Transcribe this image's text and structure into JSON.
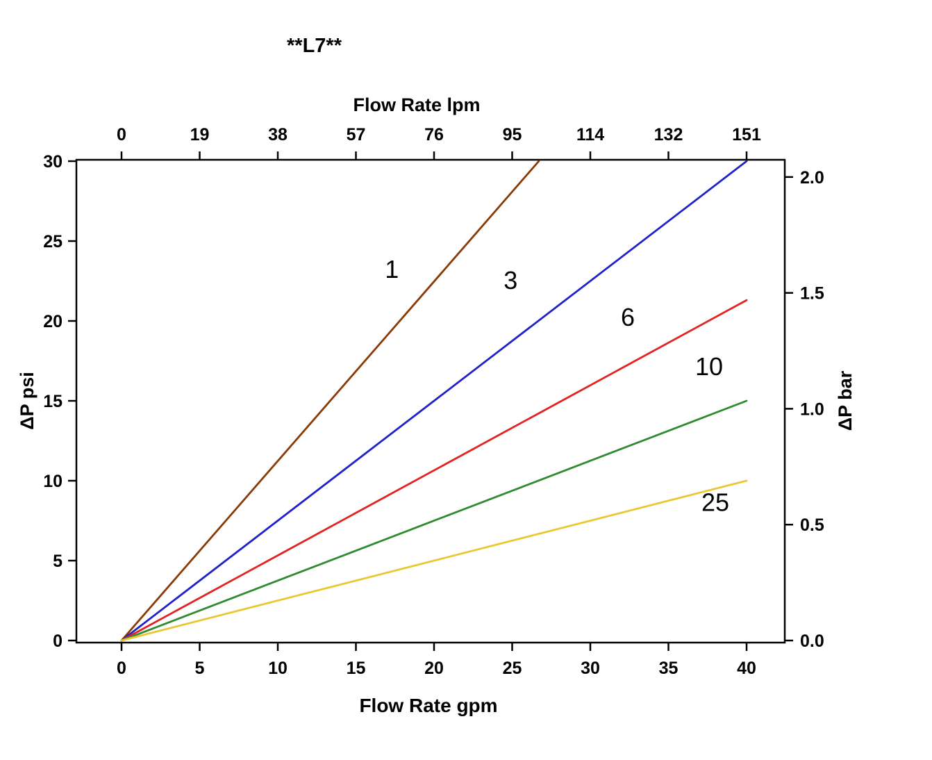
{
  "chart_data": {
    "type": "line",
    "title": "**L7**",
    "top_axis": {
      "label": "Flow Rate lpm",
      "tick_labels": [
        "0",
        "19",
        "38",
        "57",
        "76",
        "95",
        "114",
        "132",
        "151"
      ],
      "tick_gpm": [
        0,
        5,
        10,
        15,
        20,
        25,
        30,
        35,
        40
      ],
      "lpm_per_gpm": 3.785
    },
    "bottom_axis": {
      "label": "Flow Rate gpm",
      "tick_labels": [
        "0",
        "5",
        "10",
        "15",
        "20",
        "25",
        "30",
        "35",
        "40"
      ],
      "tick_gpm": [
        0,
        5,
        10,
        15,
        20,
        25,
        30,
        35,
        40
      ],
      "range": [
        0,
        40
      ]
    },
    "left_axis": {
      "label": "ΔP psi",
      "tick_labels": [
        "0",
        "5",
        "10",
        "15",
        "20",
        "25",
        "30"
      ],
      "tick_psi": [
        0,
        5,
        10,
        15,
        20,
        25,
        30
      ],
      "range": [
        0,
        30
      ]
    },
    "right_axis": {
      "label": "ΔP bar",
      "tick_labels": [
        "0.0",
        "0.5",
        "1.0",
        "1.5",
        "2.0"
      ],
      "tick_bar": [
        0,
        0.5,
        1,
        1.5,
        2
      ],
      "psi_per_bar": 14.5038
    },
    "series": [
      {
        "name": "1",
        "color": "#8a3a04",
        "slope_psi_per_gpm": 1.125,
        "points": [
          [
            0,
            0
          ],
          [
            26.7,
            30
          ]
        ],
        "label_pos": [
          17.3,
          22.7
        ]
      },
      {
        "name": "3",
        "color": "#2121cc",
        "slope_psi_per_gpm": 0.75,
        "points": [
          [
            0,
            0
          ],
          [
            40,
            30
          ]
        ],
        "label_pos": [
          24.9,
          22.0
        ]
      },
      {
        "name": "6",
        "color": "#e32222",
        "slope_psi_per_gpm": 0.53,
        "points": [
          [
            0,
            0
          ],
          [
            40,
            21.3
          ]
        ],
        "label_pos": [
          32.4,
          19.7
        ]
      },
      {
        "name": "10",
        "color": "#2e8b2e",
        "slope_psi_per_gpm": 0.375,
        "points": [
          [
            0,
            0
          ],
          [
            40,
            15.0
          ]
        ],
        "label_pos": [
          37.6,
          16.6
        ]
      },
      {
        "name": "25",
        "color": "#e9c832",
        "slope_psi_per_gpm": 0.25,
        "points": [
          [
            0,
            0
          ],
          [
            40,
            10.0
          ]
        ],
        "label_pos": [
          38.0,
          8.1
        ]
      }
    ]
  }
}
